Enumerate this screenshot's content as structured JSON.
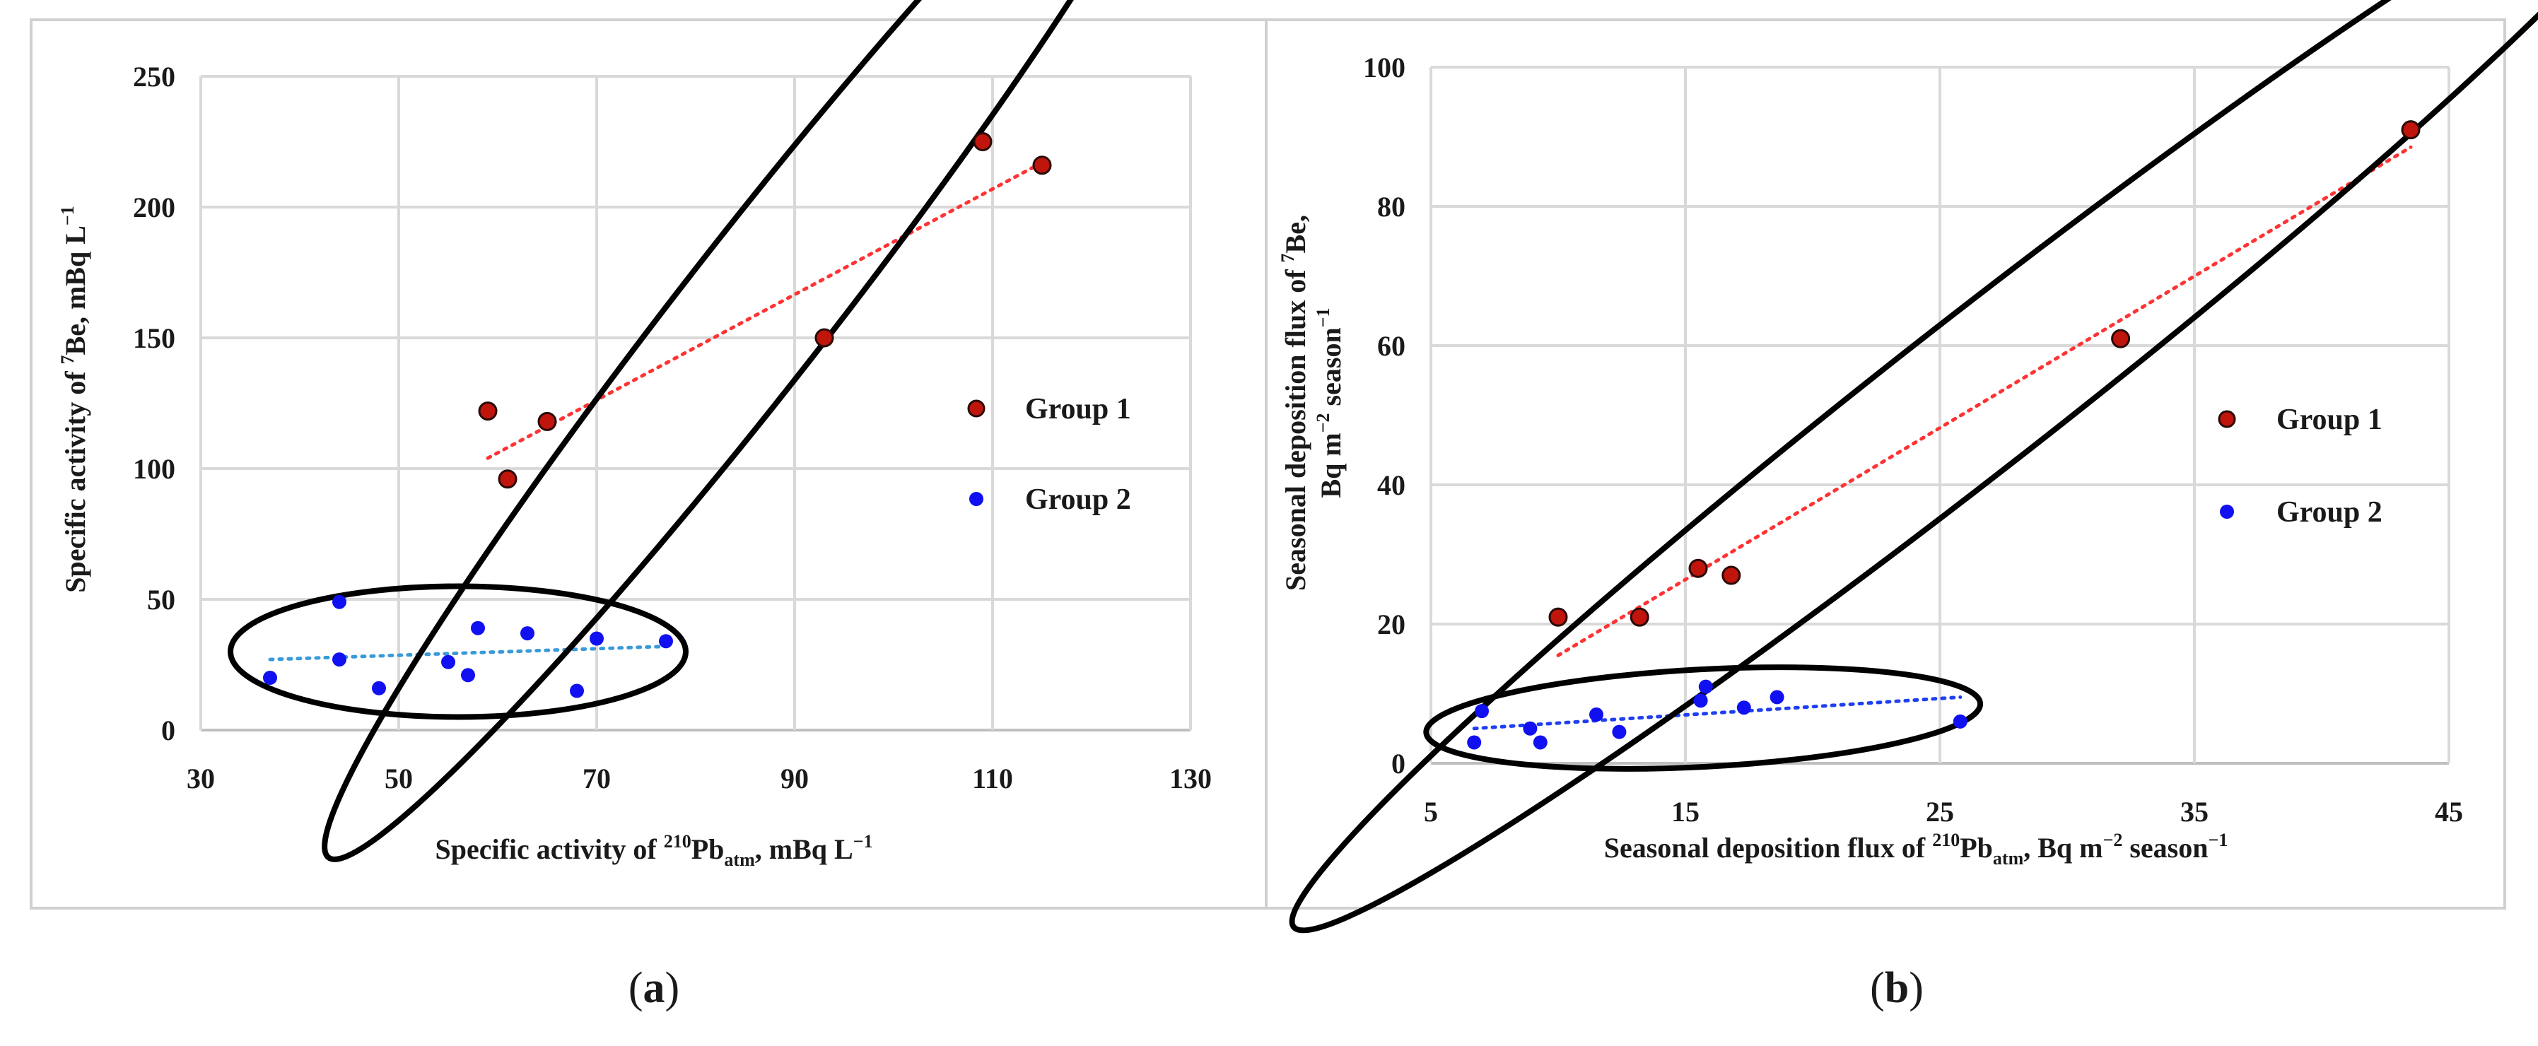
{
  "colors": {
    "group1_fill": "#c0150c",
    "group1_edge": "#2a0a08",
    "group2_fill": "#1010f0",
    "trend1": "#ff3333",
    "trend2a": "#3a9ad9",
    "trend2b": "#1f3ff0",
    "grid": "#d9d9d9",
    "axis": "#bfbfbf",
    "ellipse": "#000000",
    "frame": "#d0d0d0"
  },
  "chart_data": [
    {
      "id": "a",
      "type": "scatter",
      "panel_label": {
        "open": "(",
        "letter": "a",
        "close": ")"
      },
      "xlabel": {
        "pre": "Specific activity of ",
        "sup": "210",
        "main": "Pb",
        "sub": "atm",
        "post": ", mBq L",
        "post_sup": "−1"
      },
      "ylabel": {
        "pre": "Specific activity of ",
        "sup": "7",
        "main": "Be, mBq L",
        "post_sup": "−1"
      },
      "xlim": [
        30,
        130
      ],
      "ylim": [
        0,
        250
      ],
      "xticks": [
        "30",
        "50",
        "70",
        "90",
        "110",
        "130"
      ],
      "yticks": [
        "0",
        "50",
        "100",
        "150",
        "200",
        "250"
      ],
      "grid": true,
      "legend_position": "right",
      "series": [
        {
          "name": "Group 1",
          "x": [
            59,
            61,
            65,
            93,
            109,
            115
          ],
          "y": [
            122,
            96,
            118,
            150,
            225,
            216
          ],
          "trend": [
            [
              59,
              104
            ],
            [
              115,
              217
            ]
          ],
          "ellipse": {
            "center": [
              86,
              160
            ],
            "angle_deg": 52,
            "ra": 70,
            "rb": 28
          }
        },
        {
          "name": "Group 2",
          "x": [
            37,
            44,
            44,
            48,
            55,
            57,
            58,
            63,
            68,
            70,
            77
          ],
          "y": [
            20,
            49,
            27,
            16,
            26,
            21,
            39,
            37,
            15,
            35,
            34
          ],
          "trend": [
            [
              37,
              27
            ],
            [
              77,
              32
            ]
          ],
          "ellipse": {
            "center": [
              56,
              30
            ],
            "angle_deg": 0,
            "ra": 23,
            "rb": 25
          }
        }
      ]
    },
    {
      "id": "b",
      "type": "scatter",
      "panel_label": {
        "open": "(",
        "letter": "b",
        "close": ")"
      },
      "xlabel": {
        "pre": "Seasonal deposition flux of ",
        "sup": "210",
        "main": "Pb",
        "sub": "atm",
        "post": ", Bq m",
        "post_sup": "−2",
        "tail": " season",
        "tail_sup": "−1"
      },
      "ylabel_line1": {
        "pre": "Seasonal deposition flux of ",
        "sup": "7",
        "main": "Be,"
      },
      "ylabel_line2": {
        "pre": "Bq m",
        "sup": "−2",
        "main": " season",
        "post_sup": "−1"
      },
      "xlim": [
        5,
        45
      ],
      "ylim": [
        0,
        100
      ],
      "xticks": [
        "5",
        "15",
        "25",
        "35",
        "45"
      ],
      "yticks": [
        "0",
        "20",
        "40",
        "60",
        "80",
        "100"
      ],
      "grid": true,
      "legend_position": "right",
      "series": [
        {
          "name": "Group 1",
          "x": [
            10,
            13.2,
            15.5,
            16.8,
            32.1,
            43.5
          ],
          "y": [
            21,
            21,
            28,
            27,
            61,
            91
          ],
          "trend": [
            [
              10,
              15.5
            ],
            [
              43.5,
              88.5
            ]
          ],
          "ellipse": {
            "center": [
              26.4,
              53
            ],
            "angle_deg": 38,
            "ra": 34,
            "rb": 11
          }
        },
        {
          "name": "Group 2",
          "x": [
            6.7,
            7,
            8.9,
            9.3,
            11.5,
            12.4,
            15.6,
            15.8,
            17.3,
            18.6,
            25.8
          ],
          "y": [
            3,
            7.5,
            5,
            3,
            7,
            4.5,
            9,
            11,
            8,
            9.5,
            6
          ],
          "trend": [
            [
              6.7,
              5
            ],
            [
              25.8,
              9.5
            ]
          ],
          "ellipse": {
            "center": [
              15.7,
              6.5
            ],
            "angle_deg": 3,
            "ra": 10.9,
            "rb": 7
          }
        }
      ]
    }
  ]
}
